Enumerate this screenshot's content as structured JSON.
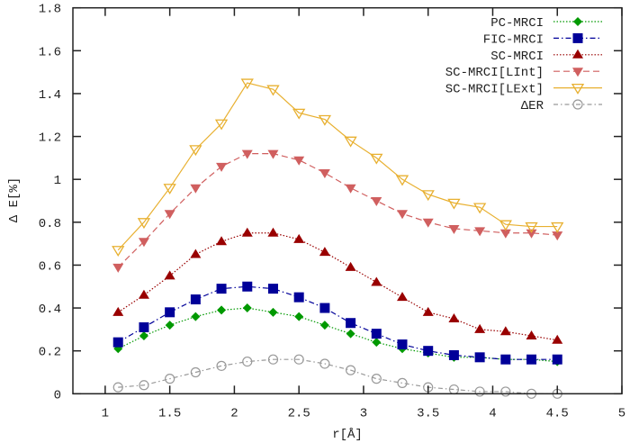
{
  "chart_data": {
    "type": "line",
    "title": "",
    "xlabel": "r[Å]",
    "ylabel": "Δ E[%]",
    "xlim": [
      0.75,
      5
    ],
    "ylim": [
      0,
      1.8
    ],
    "xticks": [
      1,
      1.5,
      2,
      2.5,
      3,
      3.5,
      4,
      4.5,
      5
    ],
    "yticks": [
      0,
      0.2,
      0.4,
      0.6,
      0.8,
      1,
      1.2,
      1.4,
      1.6,
      1.8
    ],
    "xtick_labels": [
      "1",
      "1.5",
      "2",
      "2.5",
      "3",
      "3.5",
      "4",
      "4.5",
      "5"
    ],
    "ytick_labels": [
      "0",
      "0.2",
      "0.4",
      "0.6",
      "0.8",
      "1",
      "1.2",
      "1.4",
      "1.6",
      "1.8"
    ],
    "grid": false,
    "legend_position": "top-right",
    "x": [
      1.1,
      1.3,
      1.5,
      1.7,
      1.9,
      2.1,
      2.3,
      2.5,
      2.7,
      2.9,
      3.1,
      3.3,
      3.5,
      3.7,
      3.9,
      4.1,
      4.3,
      4.5
    ],
    "series": [
      {
        "name": "PC-MRCI",
        "color": "#009900",
        "marker": "diamond-filled",
        "dash": "1.5,2",
        "values": [
          0.21,
          0.27,
          0.32,
          0.36,
          0.39,
          0.4,
          0.38,
          0.36,
          0.32,
          0.28,
          0.24,
          0.21,
          0.19,
          0.17,
          0.17,
          0.16,
          0.16,
          0.15
        ]
      },
      {
        "name": "FIC-MRCI",
        "color": "#000099",
        "marker": "square-filled",
        "dash": "6,3,1.5,3",
        "values": [
          0.24,
          0.31,
          0.38,
          0.44,
          0.49,
          0.5,
          0.49,
          0.45,
          0.4,
          0.33,
          0.28,
          0.23,
          0.2,
          0.18,
          0.17,
          0.16,
          0.16,
          0.16
        ]
      },
      {
        "name": "SC-MRCI",
        "color": "#990000",
        "marker": "triangle-up-filled",
        "dash": "1.5,2",
        "values": [
          0.38,
          0.46,
          0.55,
          0.65,
          0.71,
          0.75,
          0.75,
          0.72,
          0.66,
          0.59,
          0.52,
          0.45,
          0.38,
          0.35,
          0.3,
          0.29,
          0.27,
          0.25
        ]
      },
      {
        "name": "SC-MRCI[LInt]",
        "color": "#d05f5f",
        "marker": "triangle-down-filled",
        "dash": "7,4",
        "values": [
          0.59,
          0.71,
          0.84,
          0.96,
          1.06,
          1.12,
          1.12,
          1.09,
          1.03,
          0.96,
          0.9,
          0.84,
          0.8,
          0.77,
          0.76,
          0.75,
          0.75,
          0.74
        ]
      },
      {
        "name": "SC-MRCI[LExt]",
        "color": "#e8b030",
        "marker": "triangle-down-open",
        "dash": "",
        "values": [
          0.67,
          0.8,
          0.96,
          1.14,
          1.26,
          1.45,
          1.42,
          1.31,
          1.28,
          1.18,
          1.1,
          1.0,
          0.93,
          0.89,
          0.87,
          0.79,
          0.78,
          0.78
        ]
      },
      {
        "name": "ΔER",
        "color": "#999999",
        "marker": "circle-open",
        "dash": "5,3,1.5,3",
        "values": [
          0.03,
          0.04,
          0.07,
          0.1,
          0.13,
          0.15,
          0.16,
          0.16,
          0.14,
          0.11,
          0.07,
          0.05,
          0.03,
          0.02,
          0.01,
          0.01,
          0.0,
          0.0
        ]
      }
    ]
  }
}
